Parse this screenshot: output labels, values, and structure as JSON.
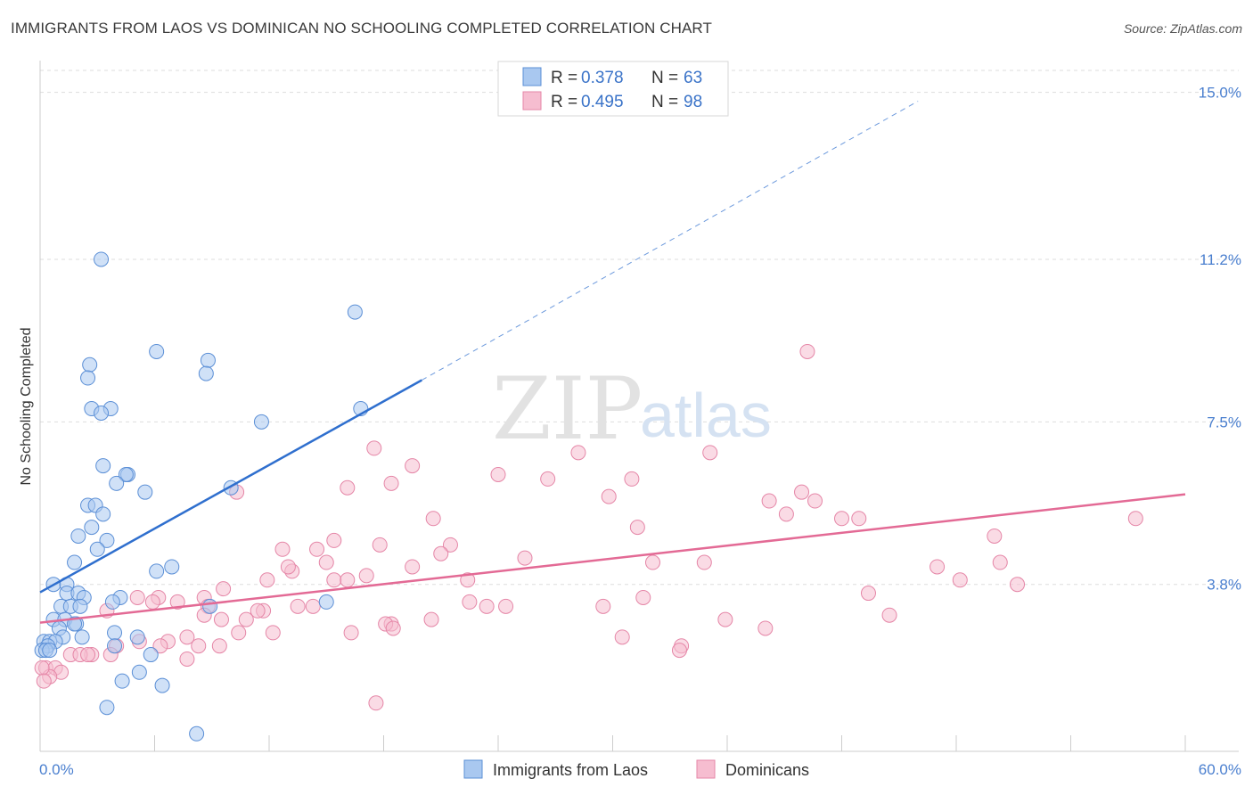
{
  "header": {
    "title": "IMMIGRANTS FROM LAOS VS DOMINICAN NO SCHOOLING COMPLETED CORRELATION CHART",
    "source": "Source: ZipAtlas.com"
  },
  "watermark": {
    "zip": "ZIP",
    "atlas": "atlas"
  },
  "legend_top": [
    {
      "r_label": "R =",
      "r_value": "0.378",
      "n_label": "N =",
      "n_value": "63"
    },
    {
      "r_label": "R =",
      "r_value": "0.495",
      "n_label": "N =",
      "n_value": "98"
    }
  ],
  "colors": {
    "blue_fill": "#a9c8f0",
    "blue_stroke": "#5b8fd6",
    "blue_line": "#2f6fce",
    "pink_fill": "#f6bdd0",
    "pink_stroke": "#e586a7",
    "pink_line": "#e36a95",
    "grid": "#dddddd",
    "tick_text": "#4a7fcf"
  },
  "chart_data": {
    "type": "scatter",
    "title": "IMMIGRANTS FROM LAOS VS DOMINICAN NO SCHOOLING COMPLETED CORRELATION CHART",
    "xlabel": "",
    "ylabel": "No Schooling Completed",
    "xlim": [
      0,
      60
    ],
    "ylim": [
      0,
      15.5
    ],
    "x_tick_labels": [
      "0.0%",
      "60.0%"
    ],
    "y_ticks": [
      3.8,
      7.5,
      11.2,
      15.0
    ],
    "y_tick_labels": [
      "3.8%",
      "7.5%",
      "11.2%",
      "15.0%"
    ],
    "grid": true,
    "legend_placement": "top-center",
    "series": [
      {
        "name": "Immigrants from Laos",
        "color": "#5b8fd6",
        "trend": {
          "x0": 0,
          "y0": 3.62,
          "x_solid_end": 20,
          "y_solid_end": 8.45,
          "x_dash_end": 46,
          "y_dash_end": 14.8
        },
        "points": [
          [
            3.2,
            11.2
          ],
          [
            16.5,
            10.0
          ],
          [
            6.1,
            9.1
          ],
          [
            8.8,
            8.9
          ],
          [
            2.6,
            8.8
          ],
          [
            8.7,
            8.6
          ],
          [
            2.5,
            8.5
          ],
          [
            2.7,
            7.8
          ],
          [
            3.7,
            7.8
          ],
          [
            3.2,
            7.7
          ],
          [
            16.8,
            7.8
          ],
          [
            11.6,
            7.5
          ],
          [
            3.3,
            6.5
          ],
          [
            4.6,
            6.3
          ],
          [
            4.5,
            6.3
          ],
          [
            4.0,
            6.1
          ],
          [
            10.0,
            6.0
          ],
          [
            5.5,
            5.9
          ],
          [
            2.5,
            5.6
          ],
          [
            2.9,
            5.6
          ],
          [
            3.3,
            5.4
          ],
          [
            2.7,
            5.1
          ],
          [
            2.0,
            4.9
          ],
          [
            3.5,
            4.8
          ],
          [
            3.0,
            4.6
          ],
          [
            1.8,
            4.3
          ],
          [
            6.9,
            4.2
          ],
          [
            6.1,
            4.1
          ],
          [
            0.7,
            3.8
          ],
          [
            1.4,
            3.8
          ],
          [
            1.4,
            3.6
          ],
          [
            2.0,
            3.6
          ],
          [
            2.3,
            3.5
          ],
          [
            4.2,
            3.5
          ],
          [
            1.1,
            3.3
          ],
          [
            1.6,
            3.3
          ],
          [
            2.1,
            3.3
          ],
          [
            3.8,
            3.4
          ],
          [
            8.9,
            3.3
          ],
          [
            15.0,
            3.4
          ],
          [
            0.7,
            3.0
          ],
          [
            1.3,
            3.0
          ],
          [
            1.9,
            2.9
          ],
          [
            1.0,
            2.8
          ],
          [
            1.8,
            2.9
          ],
          [
            1.2,
            2.6
          ],
          [
            2.2,
            2.6
          ],
          [
            3.9,
            2.7
          ],
          [
            5.1,
            2.6
          ],
          [
            0.2,
            2.5
          ],
          [
            0.5,
            2.5
          ],
          [
            0.8,
            2.5
          ],
          [
            0.4,
            2.4
          ],
          [
            0.1,
            2.3
          ],
          [
            0.3,
            2.3
          ],
          [
            3.9,
            2.4
          ],
          [
            5.8,
            2.2
          ],
          [
            5.2,
            1.8
          ],
          [
            4.3,
            1.6
          ],
          [
            6.4,
            1.5
          ],
          [
            3.5,
            1.0
          ],
          [
            8.2,
            0.4
          ],
          [
            0.5,
            2.3
          ]
        ]
      },
      {
        "name": "Dominicans",
        "color": "#e586a7",
        "trend": {
          "x0": 0,
          "y0": 2.93,
          "x1": 60,
          "y1": 5.85
        },
        "points": [
          [
            40.2,
            9.1
          ],
          [
            17.5,
            6.9
          ],
          [
            28.2,
            6.8
          ],
          [
            35.1,
            6.8
          ],
          [
            19.5,
            6.5
          ],
          [
            24.0,
            6.3
          ],
          [
            26.6,
            6.2
          ],
          [
            31.0,
            6.2
          ],
          [
            18.4,
            6.1
          ],
          [
            16.1,
            6.0
          ],
          [
            10.3,
            5.9
          ],
          [
            29.8,
            5.8
          ],
          [
            39.9,
            5.9
          ],
          [
            40.6,
            5.7
          ],
          [
            38.2,
            5.7
          ],
          [
            20.6,
            5.3
          ],
          [
            31.3,
            5.1
          ],
          [
            39.1,
            5.4
          ],
          [
            42.0,
            5.3
          ],
          [
            42.9,
            5.3
          ],
          [
            57.4,
            5.3
          ],
          [
            50.0,
            4.9
          ],
          [
            15.4,
            4.8
          ],
          [
            17.8,
            4.7
          ],
          [
            21.5,
            4.7
          ],
          [
            12.7,
            4.6
          ],
          [
            14.5,
            4.6
          ],
          [
            21.0,
            4.5
          ],
          [
            15.0,
            4.3
          ],
          [
            25.4,
            4.4
          ],
          [
            13.2,
            4.1
          ],
          [
            13.0,
            4.2
          ],
          [
            19.5,
            4.2
          ],
          [
            32.1,
            4.3
          ],
          [
            34.8,
            4.3
          ],
          [
            47.0,
            4.2
          ],
          [
            50.3,
            4.3
          ],
          [
            15.4,
            3.9
          ],
          [
            17.1,
            4.0
          ],
          [
            11.9,
            3.9
          ],
          [
            16.1,
            3.9
          ],
          [
            22.4,
            3.9
          ],
          [
            48.2,
            3.9
          ],
          [
            51.2,
            3.8
          ],
          [
            9.6,
            3.7
          ],
          [
            5.1,
            3.5
          ],
          [
            6.2,
            3.5
          ],
          [
            8.6,
            3.5
          ],
          [
            22.5,
            3.4
          ],
          [
            31.6,
            3.5
          ],
          [
            43.4,
            3.6
          ],
          [
            5.9,
            3.4
          ],
          [
            7.2,
            3.4
          ],
          [
            8.8,
            3.3
          ],
          [
            13.5,
            3.3
          ],
          [
            14.3,
            3.3
          ],
          [
            23.4,
            3.3
          ],
          [
            24.4,
            3.3
          ],
          [
            29.5,
            3.3
          ],
          [
            3.5,
            3.2
          ],
          [
            11.7,
            3.2
          ],
          [
            11.4,
            3.2
          ],
          [
            8.6,
            3.1
          ],
          [
            9.5,
            3.0
          ],
          [
            10.8,
            3.0
          ],
          [
            20.5,
            3.0
          ],
          [
            35.9,
            3.0
          ],
          [
            44.5,
            3.1
          ],
          [
            18.4,
            2.9
          ],
          [
            18.1,
            2.9
          ],
          [
            18.5,
            2.8
          ],
          [
            38.0,
            2.8
          ],
          [
            10.4,
            2.7
          ],
          [
            12.2,
            2.7
          ],
          [
            16.3,
            2.7
          ],
          [
            30.5,
            2.6
          ],
          [
            7.7,
            2.6
          ],
          [
            6.7,
            2.5
          ],
          [
            5.2,
            2.5
          ],
          [
            4.0,
            2.4
          ],
          [
            6.3,
            2.4
          ],
          [
            8.3,
            2.4
          ],
          [
            9.4,
            2.4
          ],
          [
            33.6,
            2.4
          ],
          [
            33.5,
            2.3
          ],
          [
            2.7,
            2.2
          ],
          [
            3.7,
            2.2
          ],
          [
            1.6,
            2.2
          ],
          [
            2.1,
            2.2
          ],
          [
            2.5,
            2.2
          ],
          [
            7.7,
            2.1
          ],
          [
            0.3,
            1.9
          ],
          [
            0.8,
            1.9
          ],
          [
            1.1,
            1.8
          ],
          [
            0.5,
            1.7
          ],
          [
            17.6,
            1.1
          ],
          [
            0.1,
            1.9
          ],
          [
            0.2,
            1.6
          ]
        ]
      }
    ]
  },
  "bottom_legend": [
    "Immigrants from Laos",
    "Dominicans"
  ]
}
